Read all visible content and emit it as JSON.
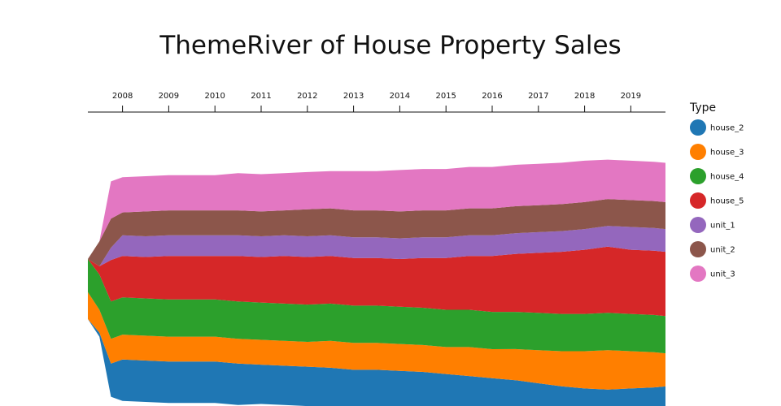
{
  "chart_data": {
    "type": "area",
    "subtype": "themeriver",
    "title": "ThemeRiver of House Property Sales",
    "x_axis": {
      "position": "top",
      "tick_labels": [
        "2008",
        "2009",
        "2010",
        "2011",
        "2012",
        "2013",
        "2014",
        "2015",
        "2016",
        "2017",
        "2018",
        "2019"
      ],
      "range": [
        2007.25,
        2019.75
      ]
    },
    "legend": {
      "title": "Type",
      "placement": "right"
    },
    "grid": false,
    "x": [
      2007.25,
      2007.5,
      2007.75,
      2008.0,
      2008.5,
      2009.0,
      2009.5,
      2010.0,
      2010.5,
      2011.0,
      2011.5,
      2012.0,
      2012.5,
      2013.0,
      2013.5,
      2014.0,
      2014.5,
      2015.0,
      2015.5,
      2016.0,
      2016.5,
      2017.0,
      2017.5,
      2018.0,
      2018.5,
      2019.0,
      2019.5,
      2019.75
    ],
    "series": [
      {
        "name": "house_2",
        "color": "#1f77b4",
        "values": [
          0.0,
          0.2,
          1.6,
          2.0,
          2.0,
          2.0,
          2.0,
          2.0,
          2.0,
          1.9,
          1.9,
          1.9,
          1.9,
          1.8,
          1.8,
          1.8,
          1.8,
          1.7,
          1.7,
          1.6,
          1.6,
          1.5,
          1.4,
          1.4,
          1.4,
          1.4,
          1.4,
          1.4
        ]
      },
      {
        "name": "house_3",
        "color": "#ff7f00",
        "values": [
          1.3,
          1.1,
          1.2,
          1.2,
          1.2,
          1.2,
          1.2,
          1.2,
          1.2,
          1.2,
          1.2,
          1.2,
          1.3,
          1.3,
          1.3,
          1.3,
          1.3,
          1.3,
          1.4,
          1.4,
          1.5,
          1.6,
          1.7,
          1.8,
          1.9,
          1.8,
          1.7,
          1.6
        ]
      },
      {
        "name": "house_4",
        "color": "#2ca02c",
        "values": [
          1.6,
          1.7,
          1.8,
          1.8,
          1.8,
          1.8,
          1.8,
          1.8,
          1.8,
          1.8,
          1.8,
          1.8,
          1.8,
          1.8,
          1.8,
          1.8,
          1.8,
          1.8,
          1.8,
          1.8,
          1.8,
          1.8,
          1.8,
          1.8,
          1.8,
          1.8,
          1.8,
          1.8
        ]
      },
      {
        "name": "house_5",
        "color": "#d62728",
        "values": [
          0.0,
          0.4,
          2.0,
          2.0,
          2.0,
          2.1,
          2.1,
          2.1,
          2.2,
          2.2,
          2.3,
          2.3,
          2.3,
          2.3,
          2.3,
          2.3,
          2.4,
          2.5,
          2.6,
          2.7,
          2.8,
          2.9,
          3.0,
          3.1,
          3.2,
          3.1,
          3.1,
          3.1
        ]
      },
      {
        "name": "unit_1",
        "color": "#9467bd",
        "values": [
          0.0,
          0.0,
          0.6,
          1.0,
          1.0,
          1.0,
          1.0,
          1.0,
          1.0,
          1.0,
          1.0,
          1.0,
          1.0,
          1.0,
          1.0,
          1.0,
          1.0,
          1.0,
          1.0,
          1.0,
          1.0,
          1.0,
          1.0,
          1.0,
          1.0,
          1.1,
          1.1,
          1.1
        ]
      },
      {
        "name": "unit_2",
        "color": "#8c564b",
        "values": [
          0.0,
          1.2,
          1.4,
          1.1,
          1.2,
          1.2,
          1.2,
          1.2,
          1.2,
          1.2,
          1.2,
          1.3,
          1.3,
          1.3,
          1.3,
          1.3,
          1.3,
          1.3,
          1.3,
          1.3,
          1.3,
          1.3,
          1.3,
          1.3,
          1.3,
          1.3,
          1.3,
          1.3
        ]
      },
      {
        "name": "unit_3",
        "color": "#e377c2",
        "values": [
          0.0,
          0.0,
          1.8,
          1.7,
          1.7,
          1.7,
          1.7,
          1.7,
          1.8,
          1.8,
          1.8,
          1.8,
          1.8,
          1.9,
          1.9,
          2.0,
          2.0,
          2.0,
          2.0,
          2.0,
          2.0,
          2.0,
          2.0,
          2.0,
          1.9,
          1.9,
          1.9,
          1.9
        ]
      }
    ]
  }
}
